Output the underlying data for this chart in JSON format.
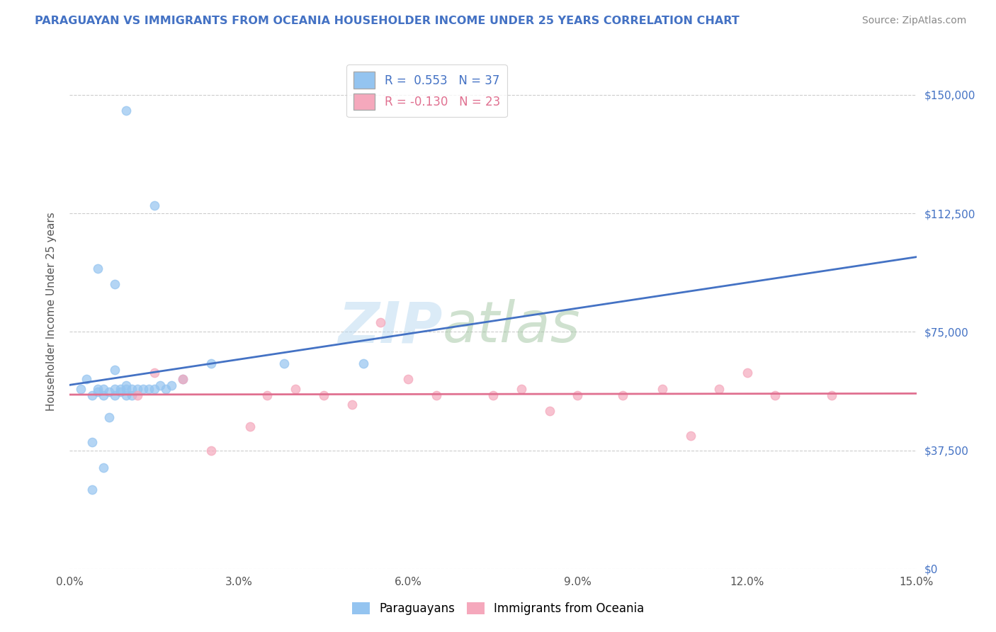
{
  "title": "PARAGUAYAN VS IMMIGRANTS FROM OCEANIA HOUSEHOLDER INCOME UNDER 25 YEARS CORRELATION CHART",
  "source": "Source: ZipAtlas.com",
  "xlabel_vals": [
    0.0,
    3.0,
    6.0,
    9.0,
    12.0,
    15.0
  ],
  "ylabel_vals": [
    0,
    37500,
    75000,
    112500,
    150000
  ],
  "ylabel_labels": [
    "$0",
    "$37,500",
    "$75,000",
    "$112,500",
    "$150,000"
  ],
  "xmin": 0.0,
  "xmax": 15.0,
  "ymin": 0,
  "ymax": 163000,
  "r_blue": 0.553,
  "n_blue": 37,
  "r_pink": -0.13,
  "n_pink": 23,
  "blue_x": [
    0.2,
    0.3,
    0.4,
    0.4,
    0.5,
    0.5,
    0.5,
    0.6,
    0.6,
    0.7,
    0.7,
    0.8,
    0.8,
    0.8,
    0.9,
    0.9,
    1.0,
    1.0,
    1.0,
    1.1,
    1.1,
    1.2,
    1.3,
    1.4,
    1.5,
    1.6,
    1.7,
    1.8,
    2.0,
    2.5,
    0.4,
    0.6,
    0.8,
    1.0,
    1.5,
    3.8,
    5.2
  ],
  "blue_y": [
    57000,
    60000,
    25000,
    55000,
    57000,
    56000,
    95000,
    55000,
    57000,
    56000,
    48000,
    55000,
    57000,
    63000,
    56000,
    57000,
    57000,
    55000,
    58000,
    57000,
    55000,
    57000,
    57000,
    57000,
    57000,
    58000,
    57000,
    58000,
    60000,
    65000,
    40000,
    32000,
    90000,
    145000,
    115000,
    65000,
    65000
  ],
  "pink_x": [
    1.2,
    1.5,
    2.0,
    2.5,
    3.2,
    3.5,
    4.0,
    4.5,
    5.0,
    5.5,
    6.0,
    6.5,
    7.5,
    8.0,
    8.5,
    9.0,
    9.8,
    10.5,
    11.0,
    11.5,
    12.0,
    12.5,
    13.5
  ],
  "pink_y": [
    55000,
    62000,
    60000,
    37500,
    45000,
    55000,
    57000,
    55000,
    52000,
    78000,
    60000,
    55000,
    55000,
    57000,
    50000,
    55000,
    55000,
    57000,
    42000,
    57000,
    62000,
    55000,
    55000
  ],
  "blue_color": "#94C4F0",
  "pink_color": "#F5A8BC",
  "blue_line_color": "#4472C4",
  "pink_line_color": "#E07090",
  "legend_labels": [
    "Paraguayans",
    "Immigrants from Oceania"
  ],
  "ylabel": "Householder Income Under 25 years",
  "title_color": "#4472C4",
  "source_color": "#888888",
  "grid_color": "#CCCCCC",
  "watermark_zip_color": "#B8D8F0",
  "watermark_atlas_color": "#A0C4A0"
}
